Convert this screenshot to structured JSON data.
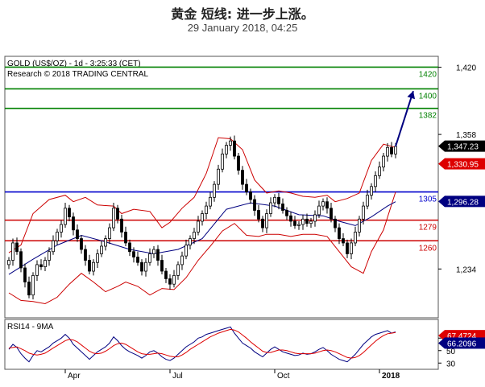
{
  "page": {
    "title": "黄金 短线: 进一步上涨。",
    "subtitle": "29 January 2018, 04:25"
  },
  "chart_data": [
    {
      "type": "candlestick",
      "header_line1": "GOLD (US$/OZ) - 1d - 3:25:33 (CET)",
      "header_line2": "Research © 2018 TRADING CENTRAL",
      "ylim": [
        1189,
        1430
      ],
      "y_ticks": [
        {
          "value": 1420,
          "label": "1,420"
        },
        {
          "value": 1358,
          "label": "1,358"
        },
        {
          "value": 1234,
          "label": "1,234"
        }
      ],
      "x_ticks": [
        {
          "value": 14,
          "label": "Apr"
        },
        {
          "value": 40,
          "label": "Jul"
        },
        {
          "value": 66,
          "label": "Oct"
        },
        {
          "value": 92,
          "label": "2018"
        }
      ],
      "levels": [
        {
          "value": 1420,
          "label": "1420",
          "color": "#008000"
        },
        {
          "value": 1400,
          "label": "1400",
          "color": "#008000"
        },
        {
          "value": 1382,
          "label": "1382",
          "color": "#008000"
        },
        {
          "value": 1305,
          "label": "1305",
          "color": "#0000cc"
        },
        {
          "value": 1279,
          "label": "1279",
          "color": "#cc0000"
        },
        {
          "value": 1260,
          "label": "1260",
          "color": "#cc0000"
        }
      ],
      "price_badges": [
        {
          "value": 1347.23,
          "label": "1,347.23",
          "bg": "#000000",
          "fg": "#ffffff"
        },
        {
          "value": 1330.95,
          "label": "1,330.95",
          "bg": "#dd0000",
          "fg": "#ffffff"
        },
        {
          "value": 1296.28,
          "label": "1,296.28",
          "bg": "#000080",
          "fg": "#ffffff"
        }
      ],
      "close": [
        1242,
        1258,
        1250,
        1235,
        1222,
        1210,
        1228,
        1238,
        1236,
        1242,
        1250,
        1260,
        1268,
        1275,
        1290,
        1282,
        1270,
        1262,
        1252,
        1242,
        1232,
        1240,
        1248,
        1255,
        1262,
        1272,
        1290,
        1280,
        1268,
        1258,
        1250,
        1245,
        1240,
        1232,
        1240,
        1248,
        1252,
        1242,
        1232,
        1225,
        1220,
        1228,
        1238,
        1246,
        1256,
        1262,
        1268,
        1278,
        1285,
        1292,
        1300,
        1312,
        1326,
        1340,
        1348,
        1352,
        1338,
        1325,
        1312,
        1305,
        1298,
        1288,
        1280,
        1272,
        1285,
        1295,
        1300,
        1294,
        1288,
        1283,
        1278,
        1274,
        1275,
        1280,
        1276,
        1278,
        1284,
        1292,
        1296,
        1290,
        1280,
        1272,
        1262,
        1258,
        1248,
        1258,
        1268,
        1280,
        1292,
        1302,
        1310,
        1320,
        1328,
        1338,
        1346,
        1340,
        1347
      ],
      "proj_to": 1398,
      "bb_upper_pts": [
        [
          0,
          1249
        ],
        [
          3,
          1256
        ],
        [
          6,
          1285
        ],
        [
          10,
          1298
        ],
        [
          14,
          1302
        ],
        [
          16,
          1296
        ],
        [
          19,
          1300
        ],
        [
          22,
          1293
        ],
        [
          26,
          1292
        ],
        [
          28,
          1285
        ],
        [
          31,
          1289
        ],
        [
          35,
          1287
        ],
        [
          38,
          1272
        ],
        [
          40,
          1277
        ],
        [
          43,
          1290
        ],
        [
          46,
          1300
        ],
        [
          49,
          1322
        ],
        [
          52,
          1355
        ],
        [
          55,
          1354
        ],
        [
          58,
          1344
        ],
        [
          61,
          1316
        ],
        [
          64,
          1304
        ],
        [
          67,
          1306
        ],
        [
          70,
          1304
        ],
        [
          73,
          1301
        ],
        [
          76,
          1300
        ],
        [
          79,
          1302
        ],
        [
          81,
          1296
        ],
        [
          84,
          1299
        ],
        [
          87,
          1304
        ],
        [
          90,
          1334
        ],
        [
          93,
          1349
        ],
        [
          96,
          1346
        ]
      ],
      "bb_lower_pts": [
        [
          0,
          1212
        ],
        [
          3,
          1205
        ],
        [
          6,
          1204
        ],
        [
          9,
          1202
        ],
        [
          12,
          1208
        ],
        [
          15,
          1220
        ],
        [
          18,
          1230
        ],
        [
          21,
          1222
        ],
        [
          24,
          1213
        ],
        [
          27,
          1218
        ],
        [
          29,
          1222
        ],
        [
          32,
          1218
        ],
        [
          35,
          1210
        ],
        [
          38,
          1216
        ],
        [
          41,
          1215
        ],
        [
          44,
          1226
        ],
        [
          47,
          1242
        ],
        [
          50,
          1255
        ],
        [
          53,
          1269
        ],
        [
          56,
          1276
        ],
        [
          59,
          1265
        ],
        [
          62,
          1264
        ],
        [
          64,
          1266
        ],
        [
          67,
          1266
        ],
        [
          70,
          1264
        ],
        [
          73,
          1266
        ],
        [
          76,
          1266
        ],
        [
          79,
          1264
        ],
        [
          82,
          1250
        ],
        [
          85,
          1236
        ],
        [
          88,
          1230
        ],
        [
          90,
          1250
        ],
        [
          93,
          1270
        ],
        [
          96,
          1305
        ]
      ],
      "sma_pts": [
        [
          0,
          1229
        ],
        [
          6,
          1243
        ],
        [
          12,
          1256
        ],
        [
          18,
          1265
        ],
        [
          24,
          1259
        ],
        [
          30,
          1252
        ],
        [
          36,
          1248
        ],
        [
          42,
          1252
        ],
        [
          48,
          1262
        ],
        [
          54,
          1289
        ],
        [
          60,
          1295
        ],
        [
          66,
          1292
        ],
        [
          72,
          1284
        ],
        [
          78,
          1283
        ],
        [
          82,
          1278
        ],
        [
          86,
          1274
        ],
        [
          90,
          1282
        ],
        [
          94,
          1292
        ],
        [
          96,
          1296
        ]
      ]
    },
    {
      "type": "line",
      "title": "RSI14 - 9MA",
      "ylim": [
        20,
        100
      ],
      "y_ticks": [
        {
          "value": 70,
          "label": "70"
        },
        {
          "value": 50,
          "label": "50"
        },
        {
          "value": 30,
          "label": "30"
        }
      ],
      "badges": [
        {
          "value": 74,
          "label": "67.4724",
          "bg": "#dd0000",
          "fg": "#ffffff"
        },
        {
          "value": 62,
          "label": "66.2096",
          "bg": "#000080",
          "fg": "#ffffff"
        }
      ],
      "series": [
        {
          "color": "#000080",
          "values": [
            52,
            60,
            55,
            45,
            38,
            32,
            42,
            50,
            48,
            52,
            56,
            62,
            66,
            70,
            76,
            70,
            60,
            54,
            48,
            42,
            36,
            42,
            48,
            52,
            56,
            62,
            72,
            66,
            58,
            52,
            48,
            45,
            42,
            38,
            42,
            48,
            50,
            46,
            40,
            36,
            34,
            38,
            44,
            50,
            56,
            60,
            64,
            70,
            72,
            76,
            78,
            80,
            82,
            84,
            86,
            88,
            78,
            70,
            62,
            58,
            54,
            48,
            44,
            40,
            46,
            52,
            56,
            52,
            48,
            46,
            44,
            42,
            43,
            46,
            44,
            45,
            48,
            52,
            55,
            50,
            44,
            40,
            36,
            34,
            32,
            38,
            44,
            52,
            60,
            66,
            72,
            76,
            78,
            80,
            82,
            78,
            80
          ]
        },
        {
          "color": "#dd0000",
          "values": [
            54,
            55,
            56,
            53,
            50,
            46,
            44,
            43,
            44,
            46,
            50,
            54,
            58,
            62,
            66,
            68,
            67,
            64,
            59,
            54,
            49,
            46,
            45,
            46,
            49,
            53,
            58,
            61,
            62,
            60,
            56,
            52,
            48,
            45,
            44,
            44,
            45,
            46,
            45,
            43,
            41,
            40,
            40,
            43,
            47,
            52,
            56,
            60,
            64,
            68,
            72,
            75,
            78,
            80,
            82,
            84,
            83,
            80,
            75,
            70,
            64,
            59,
            54,
            49,
            47,
            47,
            49,
            51,
            51,
            50,
            48,
            46,
            45,
            45,
            45,
            45,
            46,
            48,
            50,
            51,
            50,
            48,
            45,
            42,
            39,
            38,
            39,
            42,
            47,
            53,
            59,
            65,
            70,
            74,
            77,
            78,
            79
          ]
        }
      ]
    }
  ]
}
